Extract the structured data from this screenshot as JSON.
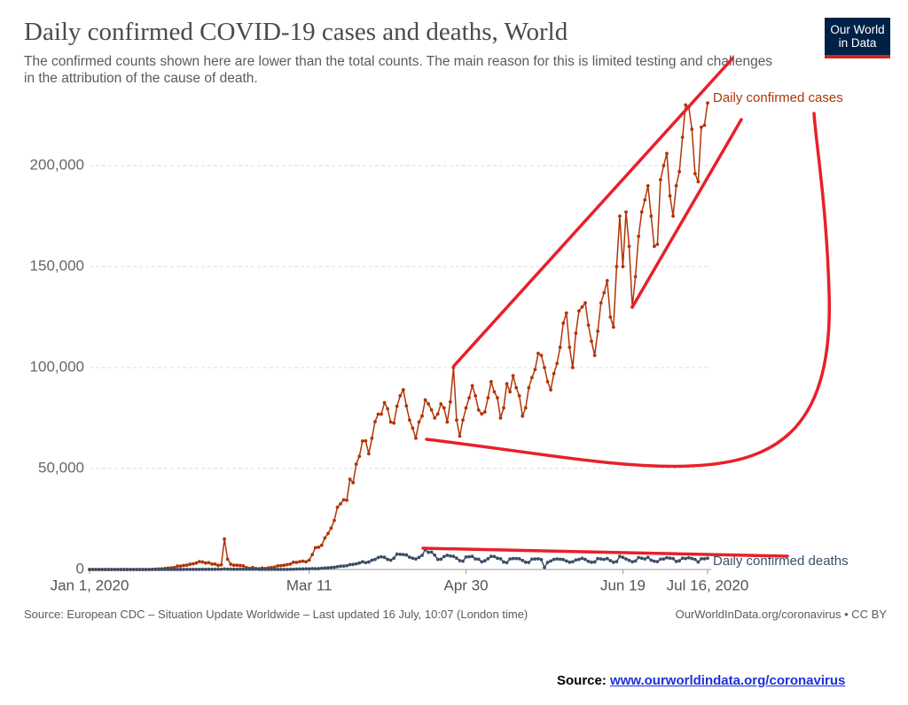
{
  "chart_data": {
    "type": "line",
    "title": "Daily confirmed COVID-19 cases and deaths, World",
    "subtitle": "The confirmed counts shown here are lower than the total counts. The main reason for this is limited testing and challenges in the attribution of the cause of death.",
    "logo": "Our World in Data",
    "source": "Source: European CDC – Situation Update Worldwide – Last updated 16 July, 10:07 (London time)",
    "license": "OurWorldInData.org/coronavirus • CC BY",
    "source_note": {
      "label": "Source:",
      "link": "www.ourworldindata.org/coronavirus"
    },
    "x": [
      "2020-01-01",
      "2020-01-02",
      "2020-01-03",
      "2020-01-04",
      "2020-01-05",
      "2020-01-06",
      "2020-01-07",
      "2020-01-08",
      "2020-01-09",
      "2020-01-10",
      "2020-01-11",
      "2020-01-12",
      "2020-01-13",
      "2020-01-14",
      "2020-01-15",
      "2020-01-16",
      "2020-01-17",
      "2020-01-18",
      "2020-01-19",
      "2020-01-20",
      "2020-01-21",
      "2020-01-22",
      "2020-01-23",
      "2020-01-24",
      "2020-01-25",
      "2020-01-26",
      "2020-01-27",
      "2020-01-28",
      "2020-01-29",
      "2020-01-30",
      "2020-01-31",
      "2020-02-01",
      "2020-02-02",
      "2020-02-03",
      "2020-02-04",
      "2020-02-05",
      "2020-02-06",
      "2020-02-07",
      "2020-02-08",
      "2020-02-09",
      "2020-02-10",
      "2020-02-11",
      "2020-02-12",
      "2020-02-13",
      "2020-02-14",
      "2020-02-15",
      "2020-02-16",
      "2020-02-17",
      "2020-02-18",
      "2020-02-19",
      "2020-02-20",
      "2020-02-21",
      "2020-02-22",
      "2020-02-23",
      "2020-02-24",
      "2020-02-25",
      "2020-02-26",
      "2020-02-27",
      "2020-02-28",
      "2020-02-29",
      "2020-03-01",
      "2020-03-02",
      "2020-03-03",
      "2020-03-04",
      "2020-03-05",
      "2020-03-06",
      "2020-03-07",
      "2020-03-08",
      "2020-03-09",
      "2020-03-10",
      "2020-03-11",
      "2020-03-12",
      "2020-03-13",
      "2020-03-14",
      "2020-03-15",
      "2020-03-16",
      "2020-03-17",
      "2020-03-18",
      "2020-03-19",
      "2020-03-20",
      "2020-03-21",
      "2020-03-22",
      "2020-03-23",
      "2020-03-24",
      "2020-03-25",
      "2020-03-26",
      "2020-03-27",
      "2020-03-28",
      "2020-03-29",
      "2020-03-30",
      "2020-03-31",
      "2020-04-01",
      "2020-04-02",
      "2020-04-03",
      "2020-04-04",
      "2020-04-05",
      "2020-04-06",
      "2020-04-07",
      "2020-04-08",
      "2020-04-09",
      "2020-04-10",
      "2020-04-11",
      "2020-04-12",
      "2020-04-13",
      "2020-04-14",
      "2020-04-15",
      "2020-04-16",
      "2020-04-17",
      "2020-04-18",
      "2020-04-19",
      "2020-04-20",
      "2020-04-21",
      "2020-04-22",
      "2020-04-23",
      "2020-04-24",
      "2020-04-25",
      "2020-04-26",
      "2020-04-27",
      "2020-04-28",
      "2020-04-29",
      "2020-04-30",
      "2020-05-01",
      "2020-05-02",
      "2020-05-03",
      "2020-05-04",
      "2020-05-05",
      "2020-05-06",
      "2020-05-07",
      "2020-05-08",
      "2020-05-09",
      "2020-05-10",
      "2020-05-11",
      "2020-05-12",
      "2020-05-13",
      "2020-05-14",
      "2020-05-15",
      "2020-05-16",
      "2020-05-17",
      "2020-05-18",
      "2020-05-19",
      "2020-05-20",
      "2020-05-21",
      "2020-05-22",
      "2020-05-23",
      "2020-05-24",
      "2020-05-25",
      "2020-05-26",
      "2020-05-27",
      "2020-05-28",
      "2020-05-29",
      "2020-05-30",
      "2020-05-31",
      "2020-06-01",
      "2020-06-02",
      "2020-06-03",
      "2020-06-04",
      "2020-06-05",
      "2020-06-06",
      "2020-06-07",
      "2020-06-08",
      "2020-06-09",
      "2020-06-10",
      "2020-06-11",
      "2020-06-12",
      "2020-06-13",
      "2020-06-14",
      "2020-06-15",
      "2020-06-16",
      "2020-06-17",
      "2020-06-18",
      "2020-06-19",
      "2020-06-20",
      "2020-06-21",
      "2020-06-22",
      "2020-06-23",
      "2020-06-24",
      "2020-06-25",
      "2020-06-26",
      "2020-06-27",
      "2020-06-28",
      "2020-06-29",
      "2020-06-30",
      "2020-07-01",
      "2020-07-02",
      "2020-07-03",
      "2020-07-04",
      "2020-07-05",
      "2020-07-06",
      "2020-07-07",
      "2020-07-08",
      "2020-07-09",
      "2020-07-10",
      "2020-07-11",
      "2020-07-12",
      "2020-07-13",
      "2020-07-14",
      "2020-07-15",
      "2020-07-16"
    ],
    "series": [
      {
        "name": "Daily confirmed cases",
        "color": "#b13507",
        "values": [
          0,
          0,
          0,
          0,
          0,
          0,
          0,
          0,
          0,
          0,
          0,
          0,
          0,
          0,
          0,
          0,
          0,
          0,
          0,
          0,
          100,
          150,
          250,
          300,
          500,
          700,
          800,
          1000,
          1700,
          1700,
          2000,
          2100,
          2600,
          2800,
          3200,
          3900,
          3700,
          3200,
          3400,
          2700,
          2700,
          2000,
          2300,
          15100,
          5100,
          2600,
          2100,
          2100,
          2000,
          1800,
          900,
          550,
          1000,
          500,
          400,
          700,
          500,
          800,
          1000,
          1200,
          1800,
          1900,
          2100,
          2400,
          2700,
          3600,
          3500,
          3900,
          4100,
          3800,
          4600,
          7400,
          10800,
          11000,
          12000,
          15600,
          17800,
          20500,
          24300,
          30800,
          32500,
          34500,
          34300,
          44700,
          43000,
          52200,
          56000,
          63600,
          63700,
          57300,
          65000,
          73200,
          76900,
          76900,
          82600,
          79600,
          73000,
          72500,
          80800,
          86000,
          89000,
          81000,
          74000,
          70000,
          65000,
          73000,
          76000,
          84000,
          82000,
          79000,
          75000,
          77000,
          82000,
          80000,
          73000,
          83000,
          100000,
          74000,
          66000,
          74000,
          80000,
          85000,
          91000,
          86000,
          79000,
          77000,
          78000,
          85000,
          93000,
          88000,
          85000,
          75000,
          80000,
          92000,
          88000,
          96000,
          90000,
          86000,
          76000,
          80000,
          90000,
          95000,
          99000,
          107000,
          106000,
          100000,
          93000,
          89000,
          97000,
          102000,
          110000,
          122000,
          127000,
          110000,
          100000,
          117000,
          128000,
          130000,
          132000,
          121000,
          113000,
          106000,
          118000,
          132000,
          137000,
          143000,
          125000,
          120000,
          150000,
          175000,
          150000,
          177000,
          160000,
          130000,
          145000,
          165000,
          177000,
          183000,
          190000,
          175000,
          160000,
          161000,
          193000,
          200000,
          206000,
          185000,
          175000,
          190000,
          197000,
          214000,
          230000,
          229000,
          218000,
          196000,
          192000,
          219000,
          220000,
          231000
        ]
      },
      {
        "name": "Daily confirmed deaths",
        "color": "#3c4e66",
        "values": [
          0,
          0,
          0,
          0,
          0,
          0,
          0,
          0,
          0,
          0,
          0,
          0,
          0,
          0,
          0,
          0,
          0,
          0,
          0,
          0,
          0,
          3,
          9,
          1,
          8,
          16,
          14,
          25,
          26,
          26,
          43,
          46,
          45,
          57,
          64,
          66,
          73,
          73,
          86,
          89,
          97,
          108,
          97,
          254,
          143,
          143,
          106,
          98,
          139,
          115,
          118,
          109,
          98,
          150,
          71,
          52,
          29,
          44,
          47,
          35,
          42,
          60,
          70,
          69,
          97,
          103,
          230,
          270,
          290,
          320,
          330,
          450,
          360,
          430,
          610,
          700,
          790,
          990,
          1060,
          1380,
          1650,
          1700,
          1850,
          2400,
          2500,
          2800,
          3200,
          3800,
          3400,
          3700,
          4600,
          5000,
          5900,
          6300,
          6000,
          5000,
          4600,
          5600,
          7600,
          7500,
          7400,
          7200,
          6100,
          5600,
          5200,
          6000,
          7000,
          9800,
          8500,
          8600,
          7100,
          5000,
          5100,
          6400,
          7000,
          6700,
          6500,
          5600,
          4400,
          4100,
          6200,
          6300,
          6500,
          5200,
          5100,
          3800,
          4300,
          5300,
          6500,
          6400,
          5600,
          5300,
          3700,
          3400,
          5200,
          5400,
          5400,
          5300,
          4500,
          3600,
          3500,
          5100,
          5200,
          5300,
          4900,
          1000,
          3500,
          4200,
          5000,
          5200,
          5100,
          4900,
          4200,
          3600,
          3800,
          4700,
          5000,
          5500,
          5000,
          4000,
          3600,
          3700,
          5400,
          5200,
          5000,
          5400,
          4400,
          3600,
          3900,
          6500,
          6000,
          5200,
          4500,
          3800,
          4200,
          5900,
          5600,
          5200,
          6000,
          4600,
          4100,
          3900,
          5100,
          5200,
          5800,
          5600,
          5400,
          4000,
          4300,
          5600,
          5400,
          5800,
          5400,
          5000,
          3700,
          5300,
          5300,
          5600
        ]
      }
    ],
    "xlim": [
      "2020-01-01",
      "2020-07-16"
    ],
    "xticks": [
      {
        "value": "2020-01-01",
        "label": "Jan 1, 2020"
      },
      {
        "value": "2020-03-11",
        "label": "Mar 11"
      },
      {
        "value": "2020-04-30",
        "label": "Apr 30"
      },
      {
        "value": "2020-06-19",
        "label": "Jun 19"
      },
      {
        "value": "2020-07-16",
        "label": "Jul 16, 2020"
      }
    ],
    "ylim": [
      0,
      232000
    ],
    "yticks": [
      0,
      {
        "value": 50000,
        "label": "50,000"
      },
      {
        "value": 100000,
        "label": "100,000"
      },
      {
        "value": 150000,
        "label": "150,000"
      },
      {
        "value": 200000,
        "label": "200,000"
      }
    ],
    "grid": true
  }
}
